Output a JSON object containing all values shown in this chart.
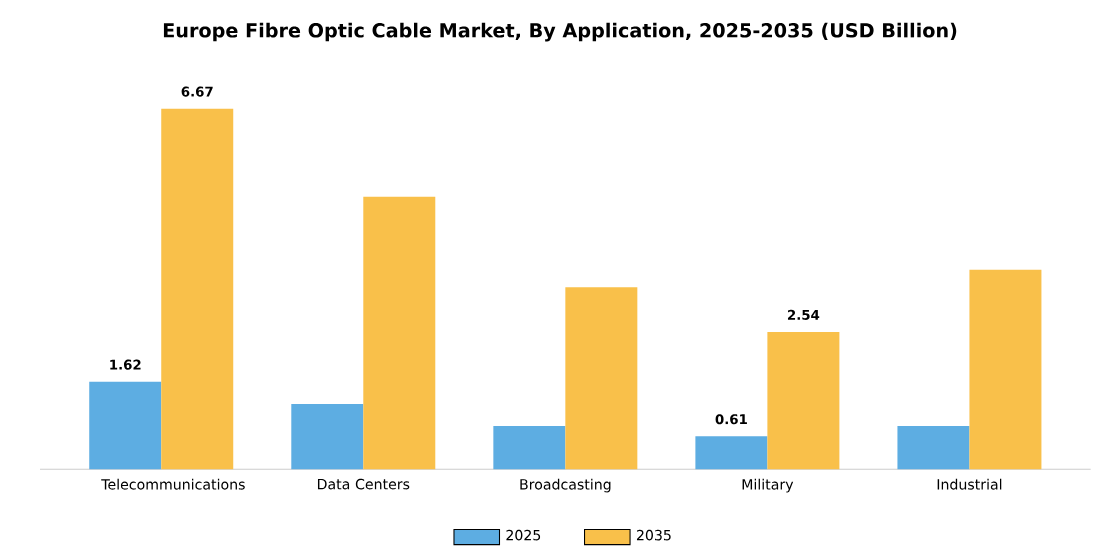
{
  "chart_data": {
    "type": "bar",
    "title": "Europe Fibre Optic Cable Market, By Application, 2025-2035 (USD Billion)",
    "categories": [
      "Telecommunications",
      "Data Centers",
      "Broadcasting",
      "Military",
      "Industrial"
    ],
    "series": [
      {
        "name": "2025",
        "color": "#5dade2",
        "values": [
          1.62,
          1.21,
          0.8,
          0.61,
          0.8
        ],
        "value_labels": [
          "1.62",
          null,
          null,
          "0.61",
          null
        ]
      },
      {
        "name": "2035",
        "color": "#f9c04a",
        "values": [
          6.67,
          5.04,
          3.37,
          2.54,
          3.69
        ],
        "value_labels": [
          "6.67",
          null,
          null,
          "2.54",
          null
        ]
      }
    ],
    "legend": "bottom"
  }
}
